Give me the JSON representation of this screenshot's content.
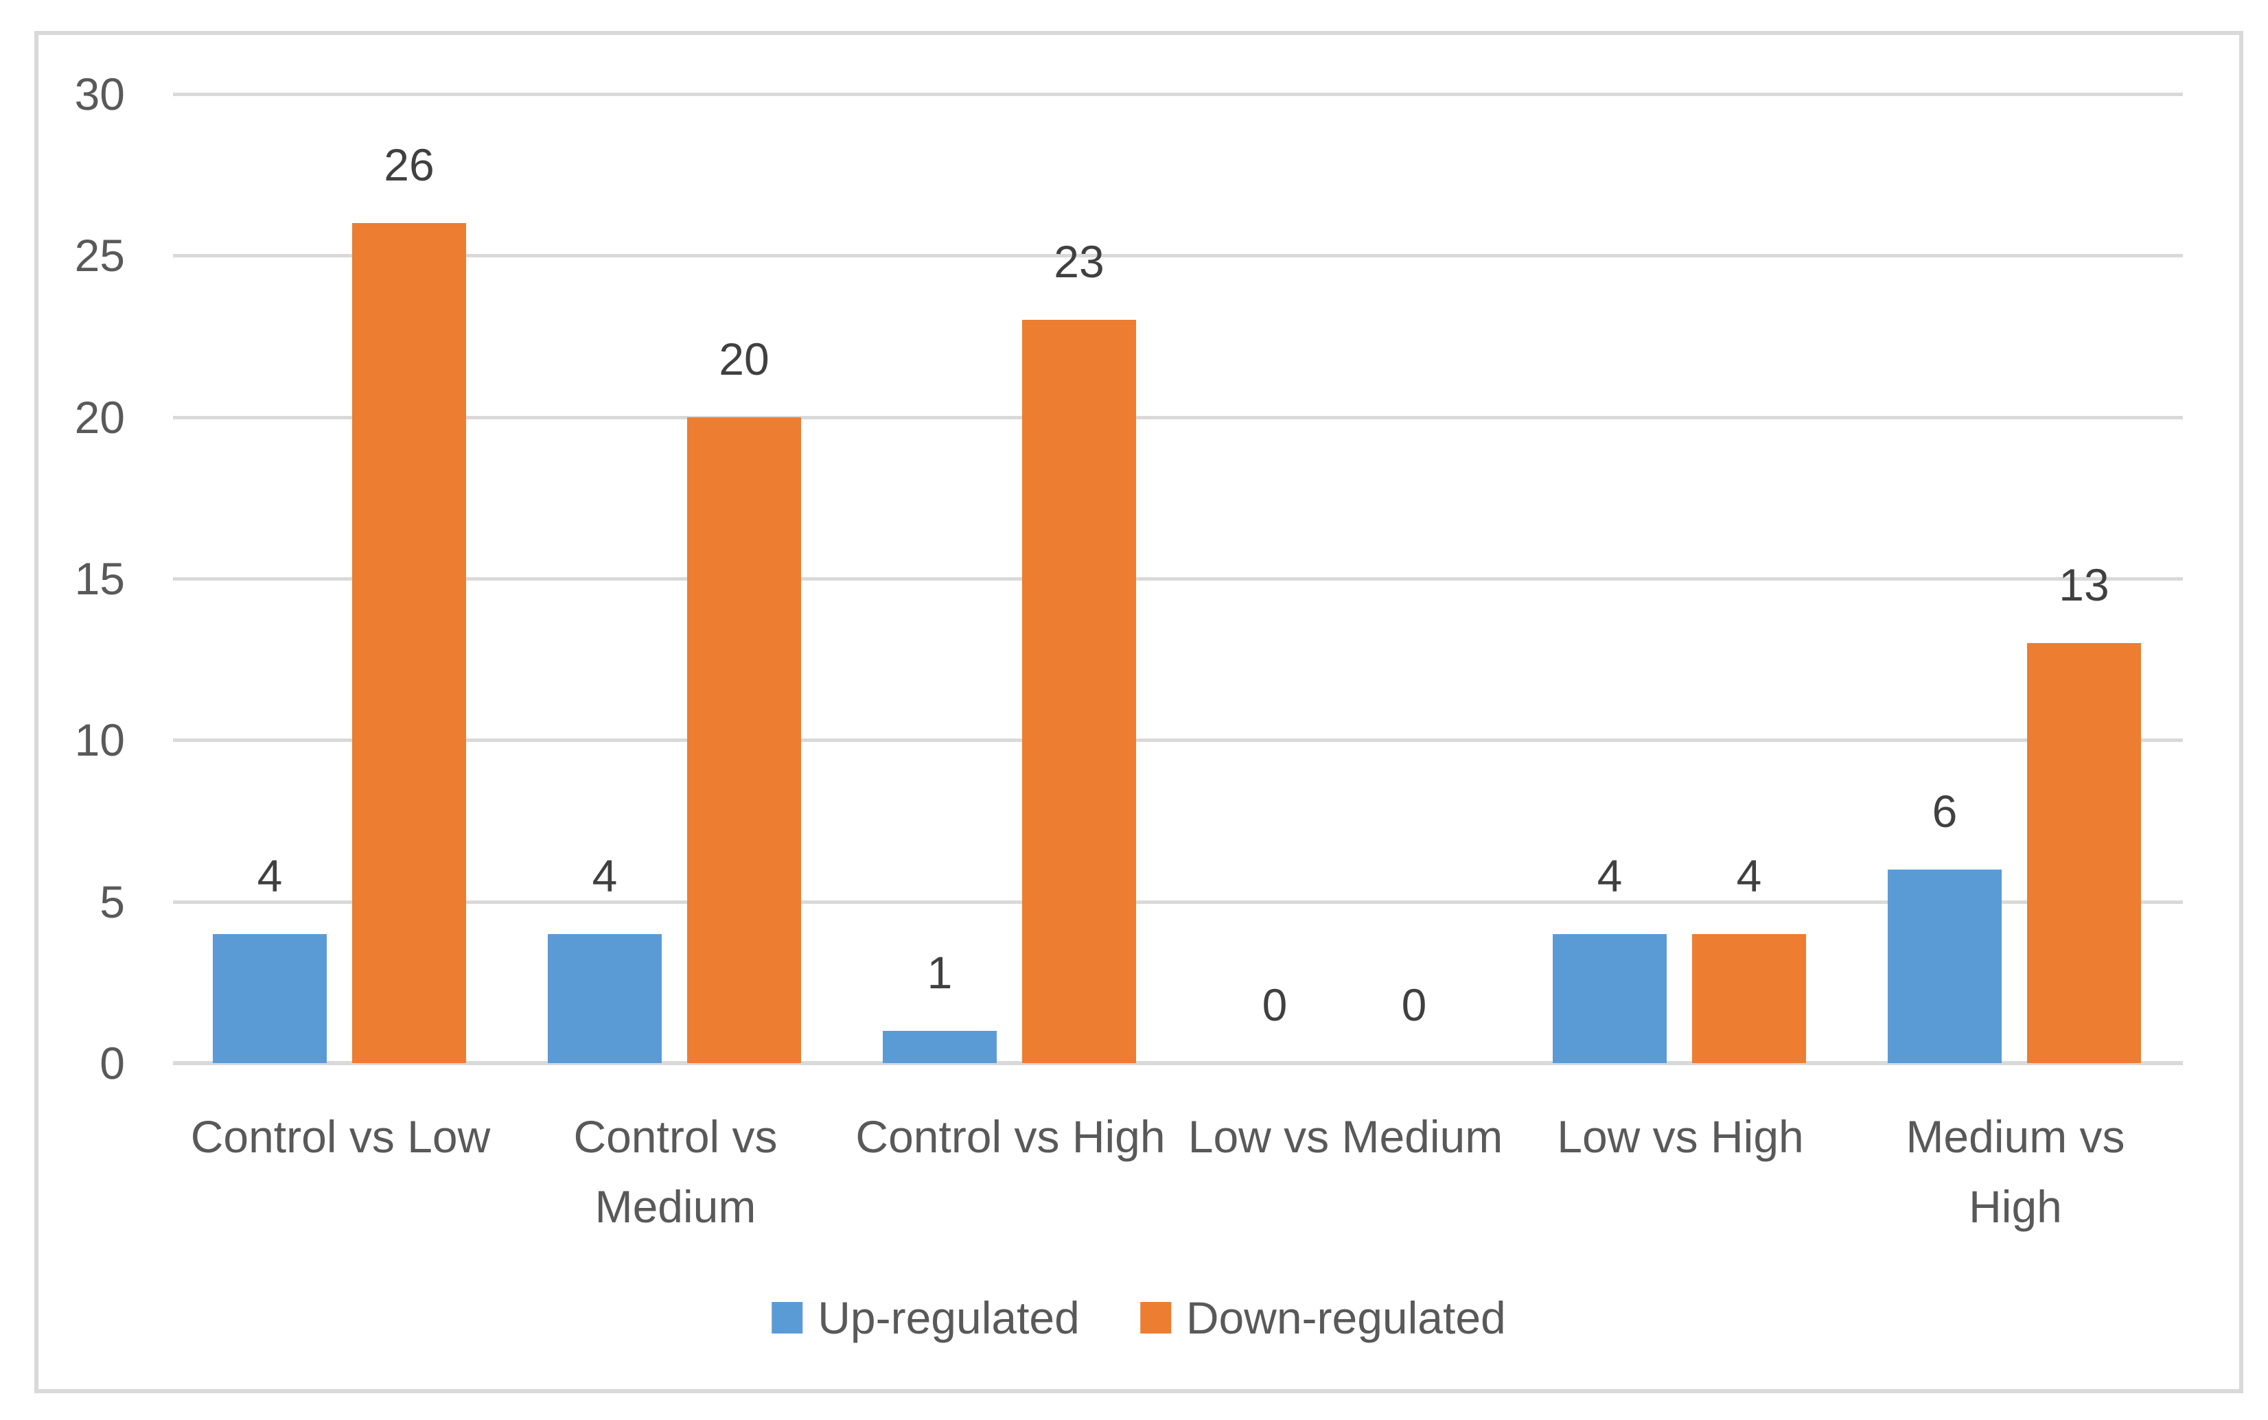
{
  "chart_data": {
    "type": "bar",
    "title": "",
    "xlabel": "",
    "ylabel": "",
    "categories": [
      "Control vs Low",
      "Control vs Medium",
      "Control vs High",
      "Low vs Medium",
      "Low vs High",
      "Medium vs High"
    ],
    "category_labels_display": [
      "Control vs Low",
      "Control vs\nMedium",
      "Control vs High",
      "Low vs Medium",
      "Low vs High",
      "Medium vs\nHigh"
    ],
    "series": [
      {
        "name": "Up-regulated",
        "color": "#5B9BD5",
        "values": [
          4,
          4,
          1,
          0,
          4,
          6
        ]
      },
      {
        "name": "Down-regulated",
        "color": "#ED7D31",
        "values": [
          26,
          20,
          23,
          0,
          4,
          13
        ]
      }
    ],
    "data_labels_shown": true,
    "ylim": [
      0,
      30
    ],
    "yticks": [
      0,
      5,
      10,
      15,
      20,
      25,
      30
    ],
    "grid": true,
    "legend_position": "bottom"
  },
  "style": {
    "bar_blue": "#5B9BD5",
    "bar_orange": "#ED7D31",
    "gridline_color": "#D9D9D9",
    "frame_border_color": "#D9D9D9",
    "axis_text_color": "#595959",
    "data_label_color": "#404040",
    "background": "#FFFFFF"
  }
}
